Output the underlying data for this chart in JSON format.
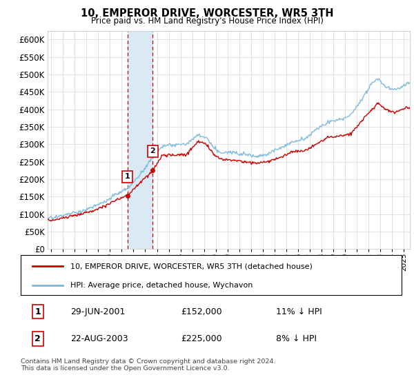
{
  "title": "10, EMPEROR DRIVE, WORCESTER, WR5 3TH",
  "subtitle": "Price paid vs. HM Land Registry's House Price Index (HPI)",
  "ylim": [
    0,
    625000
  ],
  "yticks": [
    0,
    50000,
    100000,
    150000,
    200000,
    250000,
    300000,
    350000,
    400000,
    450000,
    500000,
    550000,
    600000
  ],
  "xlim_start": 1994.7,
  "xlim_end": 2025.5,
  "sale1_date_x": 2001.49,
  "sale1_price": 152000,
  "sale2_date_x": 2003.64,
  "sale2_price": 225000,
  "hpi_color": "#7ab8d9",
  "sale_color": "#cc0000",
  "shade_color": "#daeaf5",
  "vline_color": "#cc0000",
  "legend_sale_label": "10, EMPEROR DRIVE, WORCESTER, WR5 3TH (detached house)",
  "legend_hpi_label": "HPI: Average price, detached house, Wychavon",
  "table_row1": [
    "1",
    "29-JUN-2001",
    "£152,000",
    "11% ↓ HPI"
  ],
  "table_row2": [
    "2",
    "22-AUG-2003",
    "£225,000",
    "8% ↓ HPI"
  ],
  "footer": "Contains HM Land Registry data © Crown copyright and database right 2024.\nThis data is licensed under the Open Government Licence v3.0.",
  "hpi_anchors_x": [
    1994.7,
    1995.5,
    1996.5,
    1997.5,
    1998.5,
    1999.5,
    2000.5,
    2001.5,
    2002.5,
    2003.5,
    2004.5,
    2005.5,
    2006.5,
    2007.5,
    2008.2,
    2008.8,
    2009.5,
    2010.5,
    2011.5,
    2012.5,
    2013.5,
    2014.5,
    2015.5,
    2016.5,
    2017.5,
    2018.5,
    2019.5,
    2020.5,
    2021.5,
    2022.2,
    2022.8,
    2023.5,
    2024.2,
    2024.8,
    2025.3
  ],
  "hpi_anchors_y": [
    88000,
    92000,
    100000,
    108000,
    118000,
    132000,
    155000,
    172000,
    210000,
    255000,
    295000,
    295000,
    300000,
    325000,
    318000,
    290000,
    275000,
    278000,
    272000,
    268000,
    275000,
    292000,
    308000,
    318000,
    345000,
    368000,
    375000,
    390000,
    440000,
    478000,
    495000,
    468000,
    460000,
    470000,
    480000
  ],
  "sale_anchors_x": [
    1994.7,
    1995.5,
    1996.5,
    1997.5,
    1998.5,
    1999.5,
    2000.5,
    2001.49,
    2002.5,
    2003.64,
    2004.5,
    2005.5,
    2006.5,
    2007.5,
    2008.2,
    2008.8,
    2009.5,
    2010.5,
    2011.5,
    2012.5,
    2013.5,
    2014.5,
    2015.5,
    2016.5,
    2017.5,
    2018.5,
    2019.5,
    2020.5,
    2021.5,
    2022.2,
    2022.8,
    2023.5,
    2024.2,
    2024.8,
    2025.3
  ],
  "sale_anchors_y": [
    82000,
    86000,
    93000,
    100000,
    110000,
    122000,
    140000,
    152000,
    188000,
    225000,
    268000,
    268000,
    270000,
    308000,
    300000,
    272000,
    256000,
    255000,
    248000,
    245000,
    250000,
    262000,
    276000,
    280000,
    298000,
    318000,
    322000,
    328000,
    368000,
    395000,
    415000,
    395000,
    385000,
    395000,
    400000
  ]
}
